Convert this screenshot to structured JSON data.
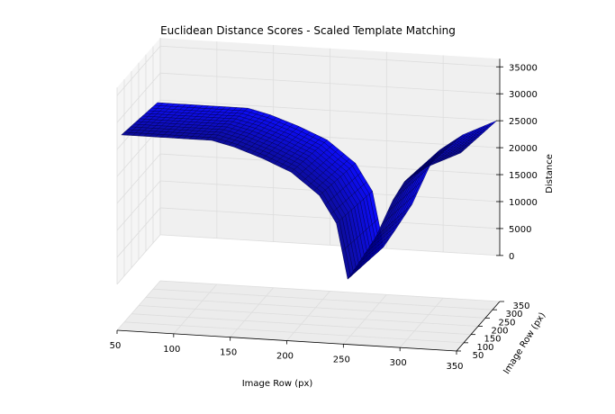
{
  "chart_data": {
    "type": "surface3d",
    "title": "Euclidean Distance Scores - Scaled Template Matching",
    "x_axis": {
      "label": "Image Row (px)",
      "ticks": [
        "50",
        "100",
        "150",
        "200",
        "250",
        "300",
        "350"
      ],
      "range": [
        50,
        350
      ]
    },
    "y_axis": {
      "label": "Image Row (px)",
      "ticks": [
        "50",
        "100",
        "150",
        "200",
        "250",
        "300",
        "350"
      ],
      "range": [
        50,
        350
      ]
    },
    "z_axis": {
      "label": "Distance",
      "ticks": [
        "0",
        "5000",
        "10000",
        "15000",
        "20000",
        "25000",
        "30000",
        "35000"
      ],
      "range": [
        0,
        35000
      ]
    },
    "grid": true,
    "surface_color": "#0000ff",
    "edge_color": "#000040",
    "profile_along_x": {
      "x": [
        50,
        80,
        130,
        150,
        175,
        200,
        225,
        240,
        250,
        260,
        275,
        290,
        300,
        320,
        350
      ],
      "distance": [
        25000,
        25000,
        25000,
        24000,
        22200,
        20000,
        16000,
        11000,
        800,
        4000,
        9000,
        16000,
        19500,
        22500,
        25500
      ]
    },
    "y_effect": {
      "y": [
        50,
        350
      ],
      "distance_offset": [
        2000,
        0
      ]
    }
  }
}
